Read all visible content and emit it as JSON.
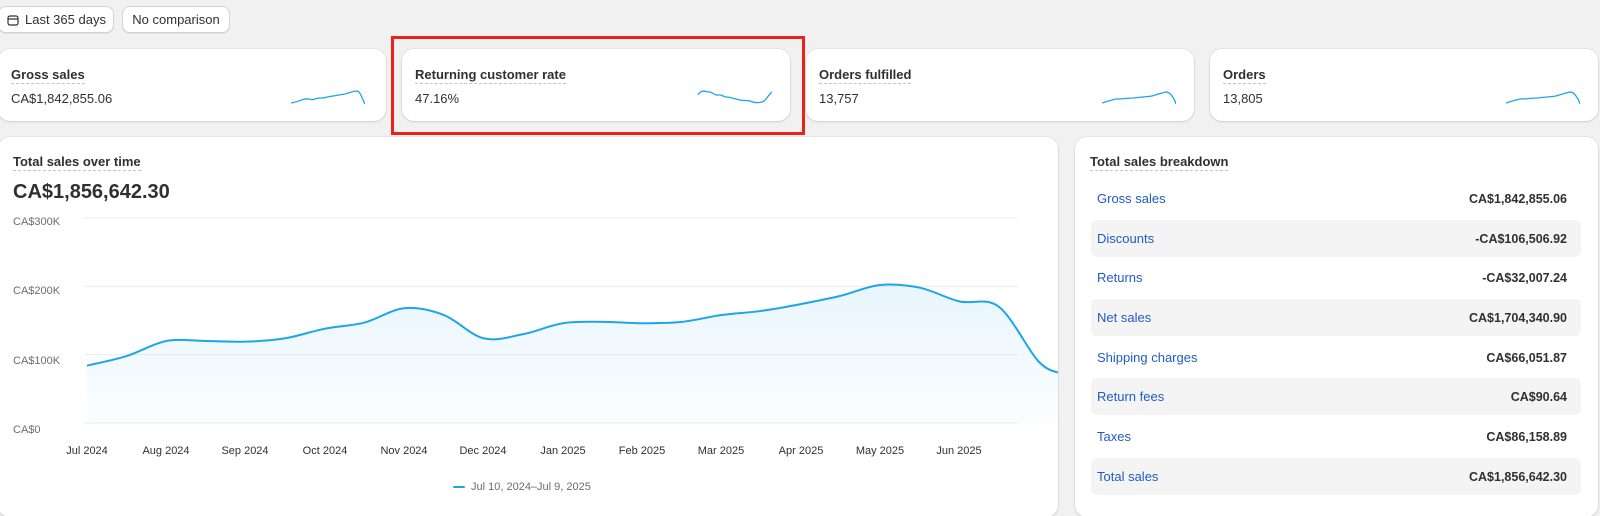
{
  "toolbar": {
    "date_range_label": "Last 365 days",
    "comparison_label": "No comparison",
    "date_icon": "calendar-icon"
  },
  "metrics": [
    {
      "label": "Gross sales",
      "value": "CA$1,842,855.06"
    },
    {
      "label": "Returning customer rate",
      "value": "47.16%"
    },
    {
      "label": "Orders fulfilled",
      "value": "13,757"
    },
    {
      "label": "Orders",
      "value": "13,805"
    }
  ],
  "sales_chart": {
    "title": "Total sales over time",
    "total": "CA$1,856,642.30",
    "legend": "Jul 10, 2024–Jul 9, 2025"
  },
  "chart_data": {
    "type": "area",
    "title": "Total sales over time",
    "y_ticks": [
      "CA$300K",
      "CA$200K",
      "CA$100K",
      "CA$0"
    ],
    "ylim": [
      0,
      300000
    ],
    "x_ticks": [
      "Jul 2024",
      "Aug 2024",
      "Sep 2024",
      "Oct 2024",
      "Nov 2024",
      "Dec 2024",
      "Jan 2025",
      "Feb 2025",
      "Mar 2025",
      "Apr 2025",
      "May 2025",
      "Jun 2025"
    ],
    "grid": true,
    "legend_position": "bottom",
    "series": [
      {
        "name": "Jul 10, 2024–Jul 9, 2025",
        "color": "#1ea5e9",
        "x": [
          0,
          0.5,
          1,
          1.5,
          2,
          2.5,
          3,
          3.5,
          4,
          4.5,
          5,
          5.5,
          6,
          6.5,
          7,
          7.5,
          8,
          8.5,
          9,
          9.5,
          10,
          10.5,
          11,
          11.5,
          12,
          12.3
        ],
        "y": [
          84000,
          98000,
          120000,
          120000,
          119000,
          124000,
          138000,
          147000,
          168000,
          158000,
          124000,
          130000,
          146000,
          148000,
          146000,
          148000,
          158000,
          164000,
          174000,
          186000,
          202000,
          198000,
          178000,
          170000,
          90000,
          72000
        ]
      }
    ]
  },
  "breakdown": {
    "title": "Total sales breakdown",
    "rows": [
      {
        "label": "Gross sales",
        "value": "CA$1,842,855.06"
      },
      {
        "label": "Discounts",
        "value": "-CA$106,506.92"
      },
      {
        "label": "Returns",
        "value": "-CA$32,007.24"
      },
      {
        "label": "Net sales",
        "value": "CA$1,704,340.90"
      },
      {
        "label": "Shipping charges",
        "value": "CA$66,051.87"
      },
      {
        "label": "Return fees",
        "value": "CA$90.64"
      },
      {
        "label": "Taxes",
        "value": "CA$86,158.89"
      },
      {
        "label": "Total sales",
        "value": "CA$1,856,642.30"
      }
    ]
  },
  "colors": {
    "accent": "#1ea5e9",
    "link": "#1f5bc6",
    "highlight": "#e8231a"
  }
}
